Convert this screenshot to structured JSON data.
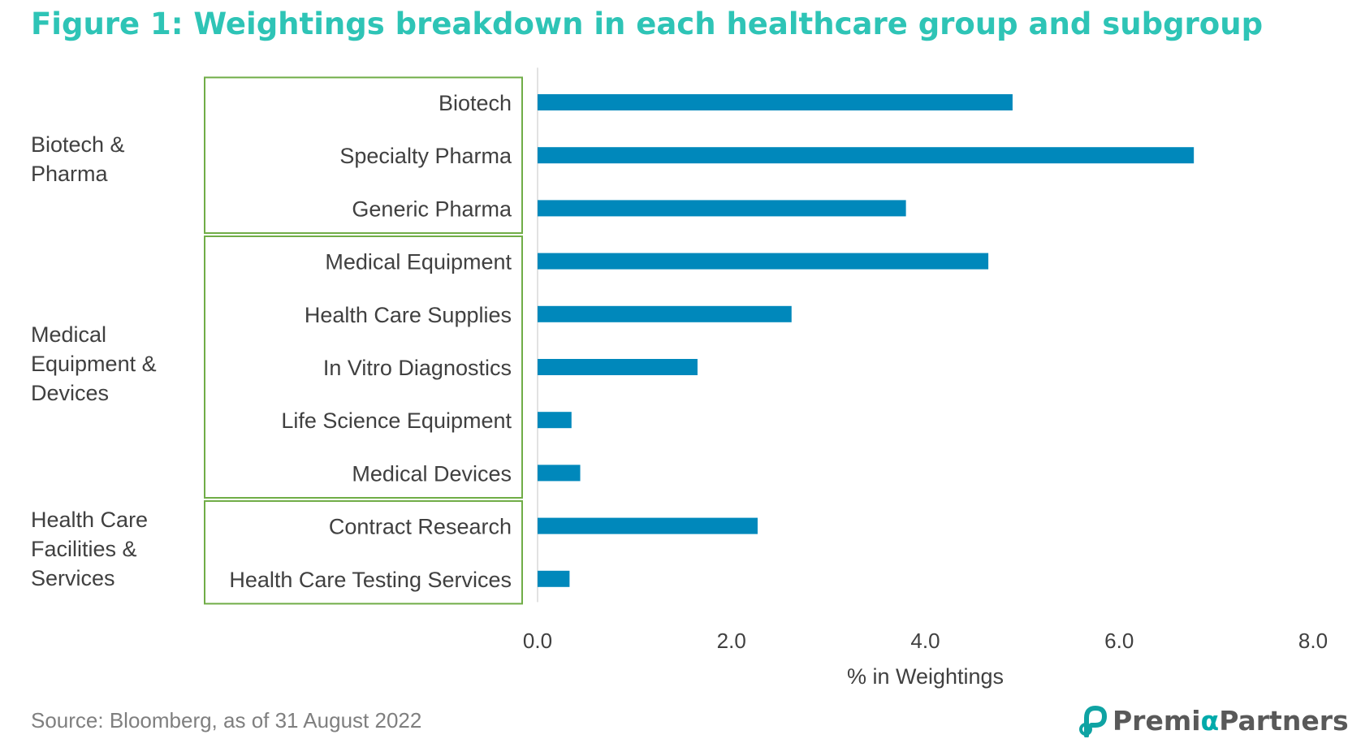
{
  "title": "Figure 1: Weightings breakdown in each healthcare group and subgroup",
  "source": "Source: Bloomberg, as of 31 August 2022",
  "logo": {
    "prefix": "Premi",
    "alpha": "α",
    "suffix": "Partners"
  },
  "colors": {
    "title": "#2ec4b6",
    "bar": "#0088bb",
    "group_box": "#70ad47",
    "axis": "#d9d9d9",
    "text": "#404040"
  },
  "groups": [
    {
      "label_lines": [
        "Biotech &",
        "Pharma"
      ],
      "first": 0,
      "last": 2
    },
    {
      "label_lines": [
        "Medical",
        "Equipment &",
        "Devices"
      ],
      "first": 3,
      "last": 7
    },
    {
      "label_lines": [
        "Health Care",
        "Facilities &",
        "Services"
      ],
      "first": 8,
      "last": 9
    }
  ],
  "chart_data": {
    "type": "bar",
    "orientation": "horizontal",
    "categories": [
      "Biotech",
      "Specialty Pharma",
      "Generic Pharma",
      "Medical Equipment",
      "Health Care Supplies",
      "In Vitro Diagnostics",
      "Life Science Equipment",
      "Medical Devices",
      "Contract Research",
      "Health Care Testing Services"
    ],
    "values": [
      4.9,
      6.77,
      3.8,
      4.65,
      2.62,
      1.65,
      0.35,
      0.44,
      2.27,
      0.33
    ],
    "xlabel": "% in Weightings",
    "xlim": [
      0,
      8
    ],
    "xticks": [
      "0.0",
      "2.0",
      "4.0",
      "6.0",
      "8.0"
    ],
    "grid": false,
    "legend": "none"
  }
}
